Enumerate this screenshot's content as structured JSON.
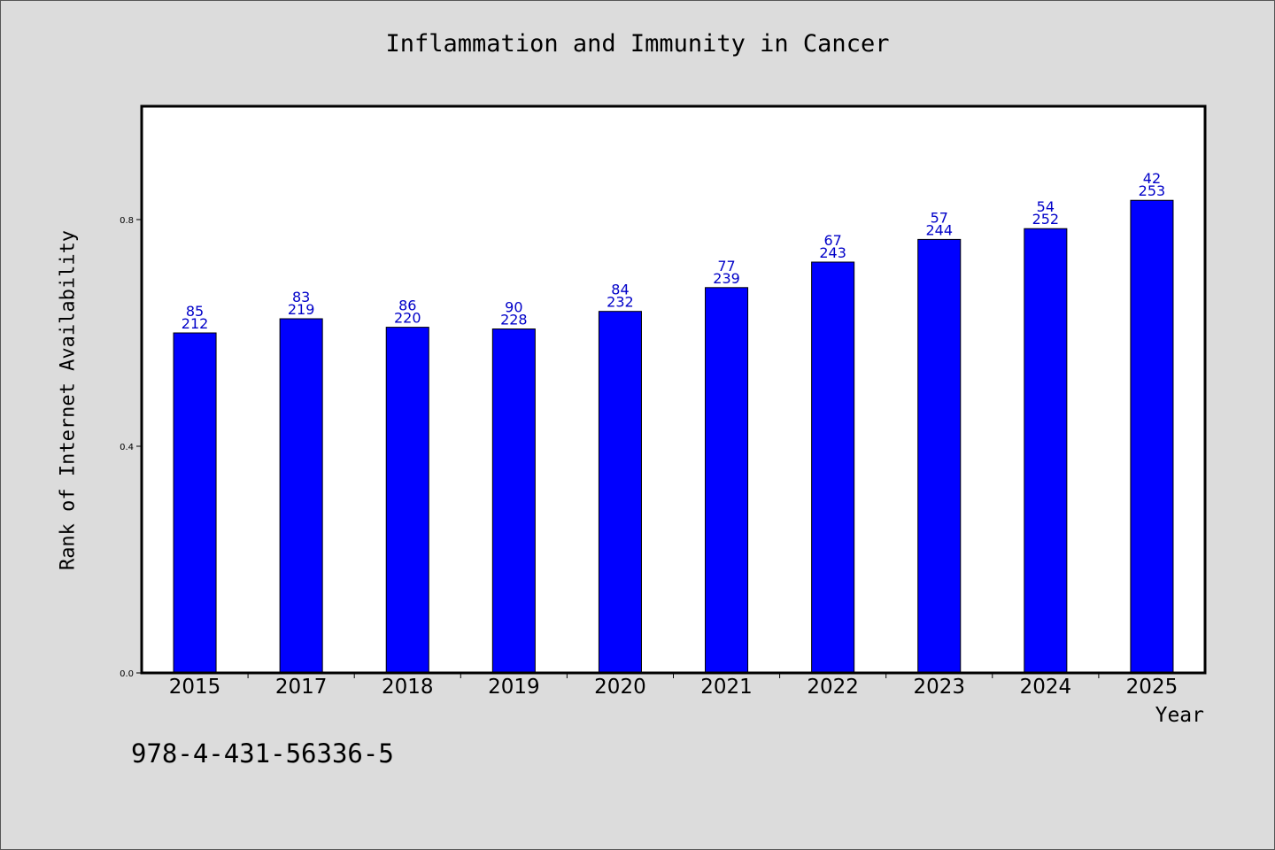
{
  "chart_data": {
    "type": "bar",
    "title": "Inflammation and Immunity in Cancer",
    "xlabel": "Year",
    "ylabel": "Rank of Internet Availability",
    "categories": [
      "2015",
      "2017",
      "2018",
      "2019",
      "2020",
      "2021",
      "2022",
      "2023",
      "2024",
      "2025"
    ],
    "values": [
      0.6,
      0.625,
      0.61,
      0.607,
      0.638,
      0.68,
      0.725,
      0.765,
      0.784,
      0.834
    ],
    "label_top": [
      "85",
      "83",
      "86",
      "90",
      "84",
      "77",
      "67",
      "57",
      "54",
      "42"
    ],
    "label_bottom": [
      "212",
      "219",
      "220",
      "228",
      "232",
      "239",
      "243",
      "244",
      "252",
      "253"
    ],
    "yticks": [
      "0.0",
      "0.4",
      "0.8"
    ],
    "ylim": [
      0,
      1.0
    ],
    "grid": false,
    "legend": "none",
    "bar_color": "#0000ff",
    "label_color": "#0000c8"
  },
  "footer": {
    "code": "978-4-431-56336-5"
  }
}
